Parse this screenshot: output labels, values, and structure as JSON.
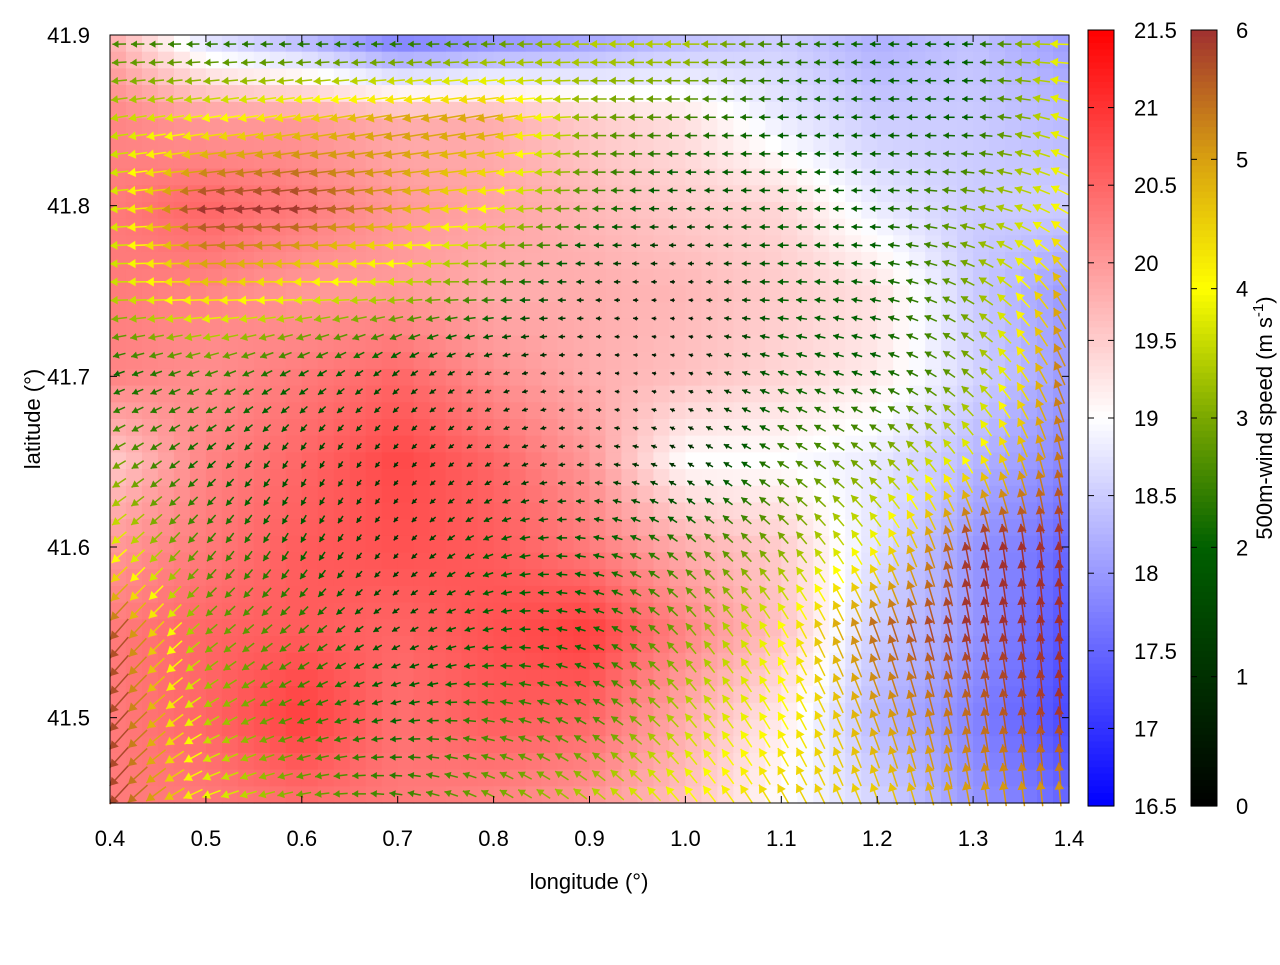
{
  "chart_data": {
    "type": "heatmap",
    "xlabel": "longitude (°)",
    "ylabel": "latitude (°)",
    "xlim": [
      0.4,
      1.4
    ],
    "ylim": [
      41.45,
      41.9
    ],
    "x_ticks": [
      "0.4",
      "0.5",
      "0.6",
      "0.7",
      "0.8",
      "0.9",
      "1.0",
      "1.1",
      "1.2",
      "1.3",
      "1.4"
    ],
    "y_ticks": [
      "41.5",
      "41.6",
      "41.7",
      "41.8",
      "41.9"
    ],
    "grid_lon": [
      0.4,
      0.5,
      0.6,
      0.7,
      0.8,
      0.9,
      1.0,
      1.1,
      1.2,
      1.3,
      1.4
    ],
    "grid_lat": [
      41.9,
      41.85,
      41.8,
      41.75,
      41.7,
      41.65,
      41.6,
      41.55,
      41.5,
      41.45
    ],
    "temperature": [
      [
        19.8,
        18.6,
        18.2,
        17.6,
        17.8,
        18.0,
        18.3,
        18.5,
        18.2,
        18.4,
        18.0
      ],
      [
        20.2,
        20.0,
        20.0,
        19.8,
        19.8,
        19.5,
        19.3,
        18.8,
        18.5,
        18.5,
        18.3
      ],
      [
        20.3,
        20.5,
        20.3,
        20.0,
        19.9,
        19.7,
        19.5,
        19.4,
        18.8,
        18.5,
        18.5
      ],
      [
        20.3,
        20.2,
        20.0,
        20.0,
        19.8,
        19.8,
        19.7,
        19.5,
        19.3,
        18.5,
        18.0
      ],
      [
        20.2,
        20.1,
        20.3,
        20.5,
        20.1,
        19.8,
        19.6,
        19.4,
        19.2,
        18.6,
        18.0
      ],
      [
        19.5,
        20.2,
        20.5,
        20.8,
        20.5,
        20.0,
        19.0,
        19.0,
        18.8,
        18.3,
        17.8
      ],
      [
        20.0,
        20.3,
        20.6,
        20.7,
        20.6,
        20.3,
        19.8,
        19.5,
        18.7,
        18.0,
        17.5
      ],
      [
        20.3,
        20.5,
        20.6,
        20.5,
        20.7,
        20.9,
        20.2,
        19.6,
        18.5,
        18.0,
        17.3
      ],
      [
        20.3,
        20.5,
        20.9,
        20.4,
        20.6,
        20.5,
        19.8,
        19.2,
        18.3,
        17.8,
        17.2
      ],
      [
        20.3,
        20.3,
        20.4,
        20.3,
        20.2,
        20.0,
        19.6,
        19.0,
        18.6,
        18.0,
        17.5
      ]
    ],
    "wind_speed": [
      [
        2.5,
        2.2,
        2,
        2,
        2.5,
        3.5,
        3.5,
        2.5,
        2,
        2,
        4
      ],
      [
        3.5,
        4,
        4.5,
        5,
        5,
        3,
        2.5,
        2,
        2,
        2,
        4
      ],
      [
        3.5,
        6,
        6,
        5,
        4,
        2.5,
        1.5,
        2,
        2,
        3,
        4
      ],
      [
        3.5,
        4.5,
        4,
        3.5,
        2.5,
        1,
        0.5,
        2,
        2,
        3,
        5
      ],
      [
        2,
        2.5,
        2,
        1.5,
        1,
        0.5,
        0.5,
        2,
        2,
        3,
        5.5
      ],
      [
        3,
        2,
        1.5,
        1,
        1,
        1,
        1,
        2.5,
        3,
        4,
        5.5
      ],
      [
        4,
        2.5,
        2,
        1,
        2,
        2,
        2.5,
        3,
        4,
        6,
        6
      ],
      [
        6,
        3,
        2.5,
        1.5,
        2,
        2,
        3,
        4,
        5.5,
        6,
        6
      ],
      [
        6,
        3.5,
        2.5,
        2,
        2.5,
        2.5,
        3.5,
        4,
        5,
        5.5,
        6
      ],
      [
        6,
        4,
        3,
        2.5,
        3,
        3.5,
        4,
        4.5,
        4.5,
        5,
        5
      ]
    ],
    "wind_direction_deg": [
      [
        180,
        180,
        180,
        180,
        180,
        180,
        180,
        180,
        180,
        180,
        180
      ],
      [
        190,
        190,
        190,
        190,
        190,
        180,
        180,
        180,
        180,
        180,
        160
      ],
      [
        185,
        185,
        185,
        185,
        185,
        180,
        180,
        180,
        180,
        170,
        150
      ],
      [
        180,
        180,
        180,
        180,
        180,
        180,
        180,
        180,
        170,
        150,
        120
      ],
      [
        200,
        200,
        210,
        220,
        200,
        180,
        160,
        160,
        160,
        140,
        110
      ],
      [
        210,
        220,
        240,
        230,
        210,
        180,
        150,
        150,
        140,
        120,
        100
      ],
      [
        220,
        230,
        240,
        230,
        200,
        170,
        140,
        130,
        120,
        100,
        95
      ],
      [
        230,
        220,
        220,
        210,
        190,
        160,
        130,
        120,
        110,
        100,
        95
      ],
      [
        230,
        210,
        200,
        190,
        170,
        150,
        130,
        120,
        110,
        100,
        95
      ],
      [
        230,
        200,
        190,
        170,
        150,
        140,
        130,
        120,
        110,
        100,
        95
      ]
    ],
    "colorbar_temperature": {
      "range": [
        16.5,
        21.5
      ],
      "ticks": [
        "16.5",
        "17",
        "17.5",
        "18",
        "18.5",
        "19",
        "19.5",
        "20",
        "20.5",
        "21",
        "21.5"
      ]
    },
    "colorbar_wind": {
      "label": "500m-wind speed (m s",
      "label_sup": "-1",
      "label_end": ")",
      "range": [
        0,
        6
      ],
      "ticks": [
        "0",
        "1",
        "2",
        "3",
        "4",
        "5",
        "6"
      ]
    },
    "colors": {
      "temp_low": "#0000ff",
      "temp_mid": "#ffffff",
      "temp_high": "#ff0000",
      "wind": [
        "#000000",
        "#003000",
        "#006000",
        "#7aa800",
        "#ffff00",
        "#d8a010",
        "#a03030"
      ]
    }
  }
}
